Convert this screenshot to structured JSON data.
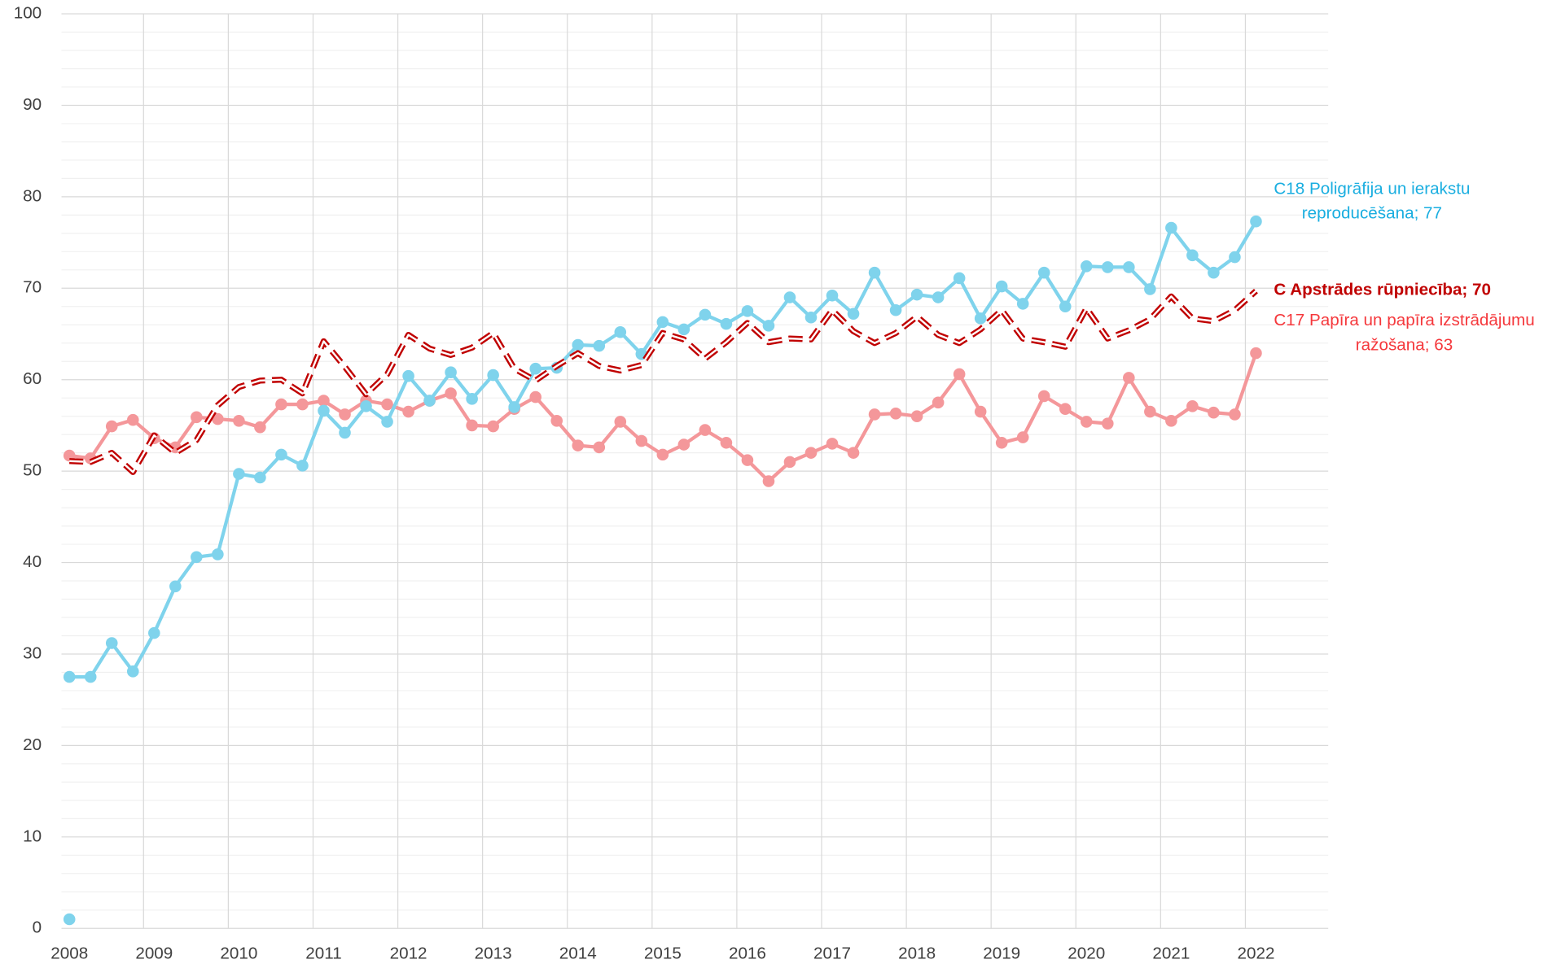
{
  "chart_data": {
    "type": "line",
    "categories": [
      "2008",
      null,
      null,
      null,
      "2009",
      null,
      null,
      null,
      "2010",
      null,
      null,
      null,
      "2011",
      null,
      null,
      null,
      "2012",
      null,
      null,
      null,
      "2013",
      null,
      null,
      null,
      "2014",
      null,
      null,
      null,
      "2015",
      null,
      null,
      null,
      "2016",
      null,
      null,
      null,
      "2017",
      null,
      null,
      null,
      "2018",
      null,
      null,
      null,
      "2019",
      null,
      null,
      null,
      "2020",
      null,
      null,
      null,
      "2021",
      null,
      null,
      null,
      "2022"
    ],
    "ylim": [
      0,
      100
    ],
    "yticks": [
      0,
      10,
      20,
      30,
      40,
      50,
      60,
      70,
      80,
      90,
      100
    ],
    "minor_yticks": [
      2,
      4,
      6,
      8,
      12,
      14,
      16,
      18,
      22,
      24,
      26,
      28,
      32,
      34,
      36,
      38,
      42,
      44,
      46,
      48,
      52,
      54,
      56,
      58,
      62,
      64,
      66,
      68,
      72,
      74,
      76,
      78,
      82,
      84,
      86,
      88,
      92,
      94,
      96,
      98
    ],
    "grid": true,
    "series": [
      {
        "color": "#f4979a",
        "style": "solid",
        "markers": true,
        "label": [
          "C17 Papīra un papīra izstrādājumu",
          "ražošana; 63"
        ],
        "label_color": "#f5383c",
        "values": [
          51.7,
          51.4,
          54.9,
          55.6,
          53.6,
          52.6,
          55.9,
          55.7,
          55.5,
          54.8,
          57.3,
          57.3,
          57.7,
          56.2,
          57.7,
          57.3,
          56.5,
          57.7,
          58.5,
          55.0,
          54.9,
          56.8,
          58.1,
          55.5,
          52.8,
          52.6,
          55.4,
          53.3,
          51.8,
          52.9,
          54.5,
          53.1,
          51.2,
          48.9,
          51.0,
          52.0,
          53.0,
          52.0,
          56.2,
          56.3,
          56.0,
          57.5,
          60.6,
          56.5,
          53.1,
          53.7,
          58.2,
          56.8,
          55.4,
          55.2,
          60.2,
          56.5,
          55.5,
          57.1,
          56.4,
          56.2,
          62.9
        ]
      },
      {
        "color": "#7fd3ec",
        "style": "solid",
        "markers": true,
        "label": [
          "C18 Poligrāfija un ierakstu",
          "reproducēšana; 77"
        ],
        "label_color": "#1aaee0",
        "values": [
          27.5,
          27.5,
          31.2,
          28.1,
          32.3,
          37.4,
          40.6,
          40.9,
          49.7,
          49.3,
          51.8,
          50.6,
          56.6,
          54.2,
          57.1,
          55.4,
          60.4,
          57.7,
          60.8,
          57.9,
          60.5,
          57.0,
          61.2,
          61.3,
          63.8,
          63.7,
          65.2,
          62.8,
          66.3,
          65.5,
          67.1,
          66.1,
          67.5,
          65.9,
          69.0,
          66.8,
          69.2,
          67.2,
          71.7,
          67.6,
          69.3,
          69.0,
          71.1,
          66.7,
          70.2,
          68.3,
          71.7,
          68.0,
          72.4,
          72.3,
          72.3,
          69.9,
          76.6,
          73.6,
          71.7,
          73.4,
          77.3
        ]
      },
      {
        "color": "#c00000",
        "style": "dashed",
        "markers": false,
        "label": [
          "C Apstrādes rūpniecība; 70"
        ],
        "label_color": "#c00000",
        "label_bold": true,
        "values": [
          51.1,
          51.0,
          52.0,
          49.9,
          53.9,
          52.0,
          53.4,
          57.2,
          59.2,
          59.9,
          60.0,
          58.5,
          64.2,
          61.4,
          58.4,
          60.6,
          64.9,
          63.4,
          62.7,
          63.5,
          65.1,
          61.2,
          59.9,
          61.5,
          62.9,
          61.5,
          61.0,
          61.6,
          65.1,
          64.4,
          62.3,
          64.1,
          66.2,
          64.1,
          64.5,
          64.4,
          67.6,
          65.3,
          64.0,
          65.1,
          66.9,
          64.9,
          64.0,
          65.5,
          67.6,
          64.5,
          64.1,
          63.6,
          67.8,
          64.5,
          65.4,
          66.6,
          69.1,
          66.7,
          66.4,
          67.6,
          69.7
        ]
      },
      {
        "color": "#7fd3ec",
        "style": "none",
        "markers": true,
        "values": [
          1,
          null,
          null,
          null,
          null,
          null,
          null,
          null,
          null,
          null,
          null,
          null,
          null,
          null,
          null,
          null,
          null,
          null,
          null,
          null,
          null,
          null,
          null,
          null,
          null,
          null,
          null,
          null,
          null,
          null,
          null,
          null,
          null,
          null,
          null,
          null,
          null,
          null,
          null,
          null,
          null,
          null,
          null,
          null,
          null,
          null,
          null,
          null,
          null,
          null,
          null,
          null,
          null,
          null,
          null,
          null,
          null
        ]
      }
    ]
  }
}
